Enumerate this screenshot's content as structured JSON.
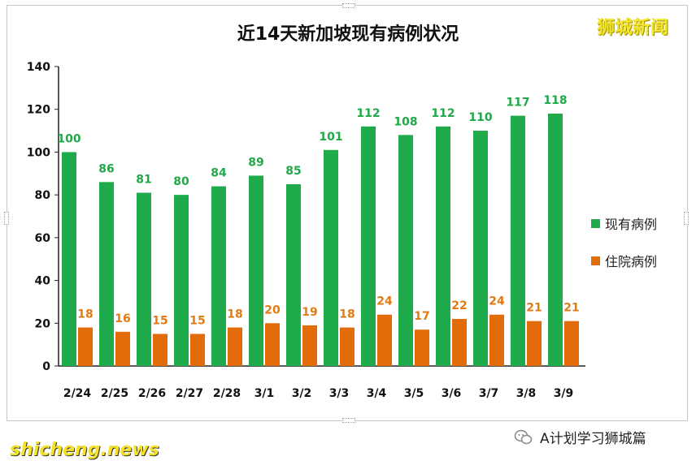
{
  "brand": "狮城新闻",
  "footer": {
    "left_watermark": "shicheng.news",
    "account": "A计划学习狮城篇"
  },
  "colors": {
    "green": "#1faa4c",
    "orange": "#e36c0a",
    "green_label": "#22a84a",
    "orange_label": "#e47a12"
  },
  "chart_data": {
    "type": "bar",
    "title": "近14天新加坡现有病例状况",
    "categories": [
      "2/24",
      "2/25",
      "2/26",
      "2/27",
      "2/28",
      "3/1",
      "3/2",
      "3/3",
      "3/4",
      "3/5",
      "3/6",
      "3/7",
      "3/8",
      "3/9"
    ],
    "series": [
      {
        "name": "现有病例",
        "values": [
          100,
          86,
          81,
          80,
          84,
          89,
          85,
          101,
          112,
          108,
          112,
          110,
          117,
          118
        ]
      },
      {
        "name": "住院病例",
        "values": [
          18,
          16,
          15,
          15,
          18,
          20,
          19,
          18,
          24,
          17,
          22,
          24,
          21,
          21
        ]
      }
    ],
    "ylim": [
      0,
      140
    ],
    "yticks": [
      "0",
      "20",
      "40",
      "60",
      "80",
      "100",
      "120",
      "140"
    ],
    "grid": false,
    "legend": "right",
    "data_labels": true
  }
}
